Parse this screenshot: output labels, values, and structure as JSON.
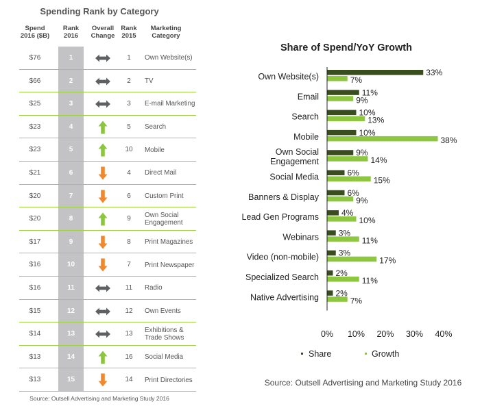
{
  "spending_table": {
    "title": "Spending Rank by Category",
    "headers": {
      "spend": "Spend\n2016 ($B)",
      "rank2016": "Rank\n2016",
      "change": "Overall\nChange",
      "rank2015": "Rank\n2015",
      "category": "Marketing\nCategory"
    },
    "rows": [
      {
        "spend": "$76",
        "rank2016": "1",
        "change": "same",
        "rank2015": "1",
        "category": "Own Website(s)"
      },
      {
        "spend": "$66",
        "rank2016": "2",
        "change": "same",
        "rank2015": "2",
        "category": "TV"
      },
      {
        "spend": "$25",
        "rank2016": "3",
        "change": "same",
        "rank2015": "3",
        "category": "E-mail Marketing"
      },
      {
        "spend": "$23",
        "rank2016": "4",
        "change": "up",
        "rank2015": "5",
        "category": "Search"
      },
      {
        "spend": "$23",
        "rank2016": "5",
        "change": "up",
        "rank2015": "10",
        "category": "Mobile"
      },
      {
        "spend": "$21",
        "rank2016": "6",
        "change": "down",
        "rank2015": "4",
        "category": "Direct Mail"
      },
      {
        "spend": "$20",
        "rank2016": "7",
        "change": "down",
        "rank2015": "6",
        "category": "Custom Print"
      },
      {
        "spend": "$20",
        "rank2016": "8",
        "change": "up",
        "rank2015": "9",
        "category": "Own Social Engagement"
      },
      {
        "spend": "$17",
        "rank2016": "9",
        "change": "down",
        "rank2015": "8",
        "category": "Print Magazines"
      },
      {
        "spend": "$16",
        "rank2016": "10",
        "change": "down",
        "rank2015": "7",
        "category": "Print Newspaper"
      },
      {
        "spend": "$16",
        "rank2016": "11",
        "change": "same",
        "rank2015": "11",
        "category": "Radio"
      },
      {
        "spend": "$15",
        "rank2016": "12",
        "change": "same",
        "rank2015": "12",
        "category": "Own Events"
      },
      {
        "spend": "$14",
        "rank2016": "13",
        "change": "same",
        "rank2015": "13",
        "category": "Exhibitions & Trade Shows"
      },
      {
        "spend": "$13",
        "rank2016": "14",
        "change": "up",
        "rank2015": "16",
        "category": "Social Media"
      },
      {
        "spend": "$13",
        "rank2016": "15",
        "change": "down",
        "rank2015": "14",
        "category": "Print Directories"
      }
    ],
    "icons": {
      "same": "double-arrow-icon",
      "up": "up-arrow-icon",
      "down": "down-arrow-icon"
    },
    "colors": {
      "same": "#5f6062",
      "up": "#8cc63f",
      "down": "#f0882e",
      "separator": "#9dd13f",
      "rank_band": "#c3c3c6"
    },
    "source": "Source: Outsell Advertising and Marketing Study 2016"
  },
  "chart_data": {
    "type": "bar",
    "orientation": "horizontal",
    "title": "Share of Spend/YoY Growth",
    "categories": [
      "Own Website(s)",
      "Email",
      "Search",
      "Mobile",
      "Own Social Engagement",
      "Social Media",
      "Banners & Display",
      "Lead Gen Programs",
      "Webinars",
      "Video (non-mobile)",
      "Specialized Search",
      "Native Advertising"
    ],
    "series": [
      {
        "name": "Share",
        "color": "#3a4d1e",
        "values": [
          33,
          11,
          10,
          10,
          9,
          6,
          6,
          4,
          3,
          3,
          2,
          2
        ]
      },
      {
        "name": "Growth",
        "color": "#8dc63f",
        "values": [
          7,
          9,
          13,
          38,
          14,
          15,
          9,
          10,
          11,
          17,
          11,
          7
        ]
      }
    ],
    "xticks": [
      "0%",
      "10%",
      "20%",
      "30%",
      "40%"
    ],
    "xlim": [
      0,
      40
    ],
    "grid": false,
    "legend": "bottom",
    "source": "Source: Outsell Advertising and Marketing Study 2016"
  }
}
